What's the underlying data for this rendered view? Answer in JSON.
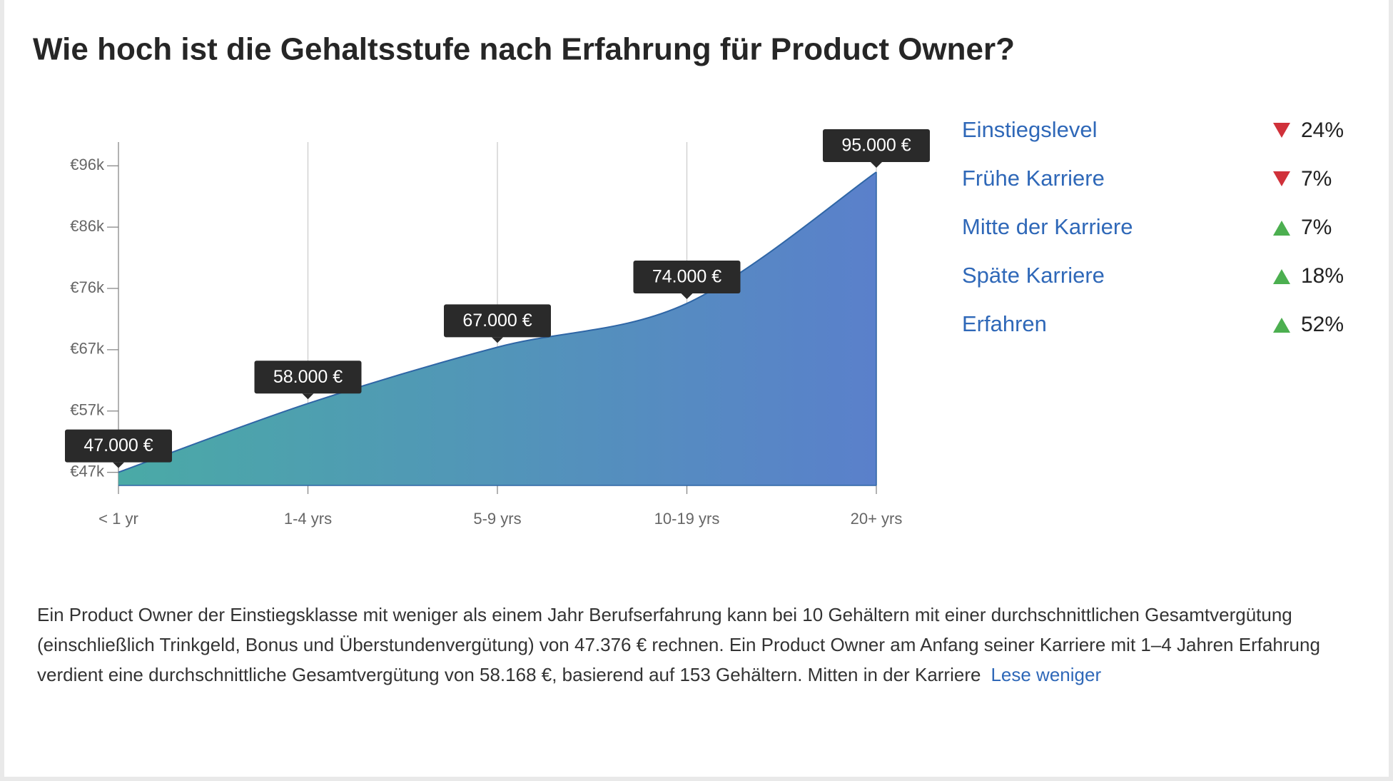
{
  "heading": "Wie hoch ist die Gehaltsstufe nach Erfahrung für Product Owner?",
  "chart_data": {
    "type": "area",
    "categories": [
      "< 1 yr",
      "1-4 yrs",
      "5-9 yrs",
      "10-19 yrs",
      "20+ yrs"
    ],
    "values": [
      47000,
      58000,
      67000,
      74000,
      95000
    ],
    "value_labels": [
      "47.000 €",
      "58.000 €",
      "67.000 €",
      "74.000 €",
      "95.000 €"
    ],
    "color_start": "#4aaaa6",
    "color_end": "#5a80cb",
    "line_color": "#2f66a6",
    "ylim": [
      44900,
      99800
    ],
    "yticks": [
      {
        "value": 47000,
        "label": "€47k"
      },
      {
        "value": 56800,
        "label": "€57k"
      },
      {
        "value": 66600,
        "label": "€67k"
      },
      {
        "value": 76400,
        "label": "€76k"
      },
      {
        "value": 86200,
        "label": "€86k"
      },
      {
        "value": 96000,
        "label": "€96k"
      }
    ],
    "grid": true
  },
  "career_levels": [
    {
      "label": "Einstiegslevel",
      "direction": "down",
      "change": "24%"
    },
    {
      "label": "Frühe Karriere",
      "direction": "down",
      "change": "7%"
    },
    {
      "label": "Mitte der Karriere",
      "direction": "up",
      "change": "7%"
    },
    {
      "label": "Späte Karriere",
      "direction": "up",
      "change": "18%"
    },
    {
      "label": "Erfahren",
      "direction": "up",
      "change": "52%"
    }
  ],
  "description": "Ein Product Owner der Einstiegsklasse mit weniger als einem Jahr Berufserfahrung kann bei 10 Gehältern mit einer durchschnittlichen Gesamtvergütung (einschließlich Trinkgeld, Bonus und Überstundenvergütung) von 47.376 € rechnen. Ein Product Owner am Anfang seiner Karriere mit 1–4 Jahren Erfahrung verdient eine durchschnittliche Gesamtvergütung von 58.168 €, basierend auf 153 Gehältern. Mitten in der Karriere",
  "toggle_link": "Lese weniger"
}
